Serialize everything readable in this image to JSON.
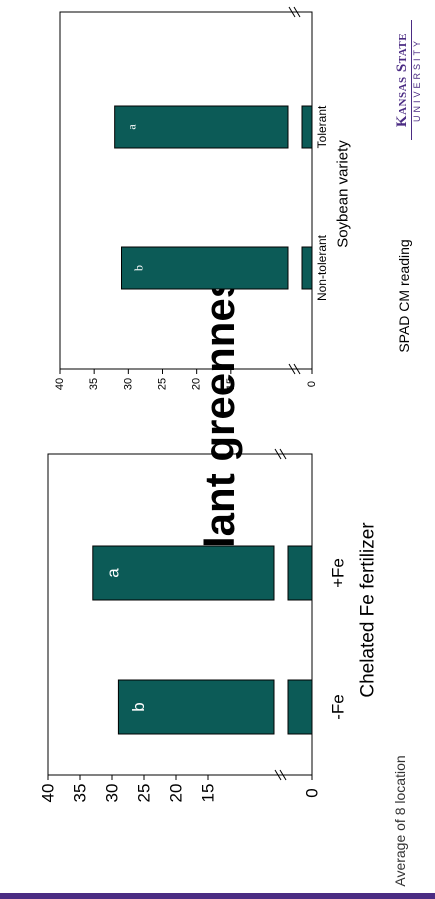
{
  "slide": {
    "title": "Plant greenness",
    "footnote": "Average of 8 location",
    "logo": {
      "line1": "Kansas State",
      "line2": "UNIVERSITY"
    }
  },
  "colors": {
    "bar": "#0c5b57",
    "axis": "#000000",
    "logo": "#4b2c83"
  },
  "chart_data": [
    {
      "type": "bar",
      "categories": [
        "-Fe",
        "+Fe"
      ],
      "values": [
        29,
        33
      ],
      "bar_labels": [
        "b",
        "a"
      ],
      "xlabel": "Chelated Fe fertilizer",
      "ylabel": "SPAD CM reading",
      "ylim": [
        10,
        40
      ],
      "yticks": [
        "40",
        "35",
        "30",
        "25",
        "20",
        "15",
        "0"
      ],
      "axis_break": true
    },
    {
      "type": "bar",
      "categories": [
        "Non-tolerant",
        "Tolerant"
      ],
      "values": [
        31,
        32
      ],
      "bar_labels": [
        "b",
        "a"
      ],
      "xlabel": "Soybean variety",
      "ylabel": "SPAD CM reading",
      "ylim": [
        10,
        40
      ],
      "yticks": [
        "40",
        "35",
        "30",
        "25",
        "20",
        "15",
        "0"
      ],
      "axis_break": true
    }
  ]
}
